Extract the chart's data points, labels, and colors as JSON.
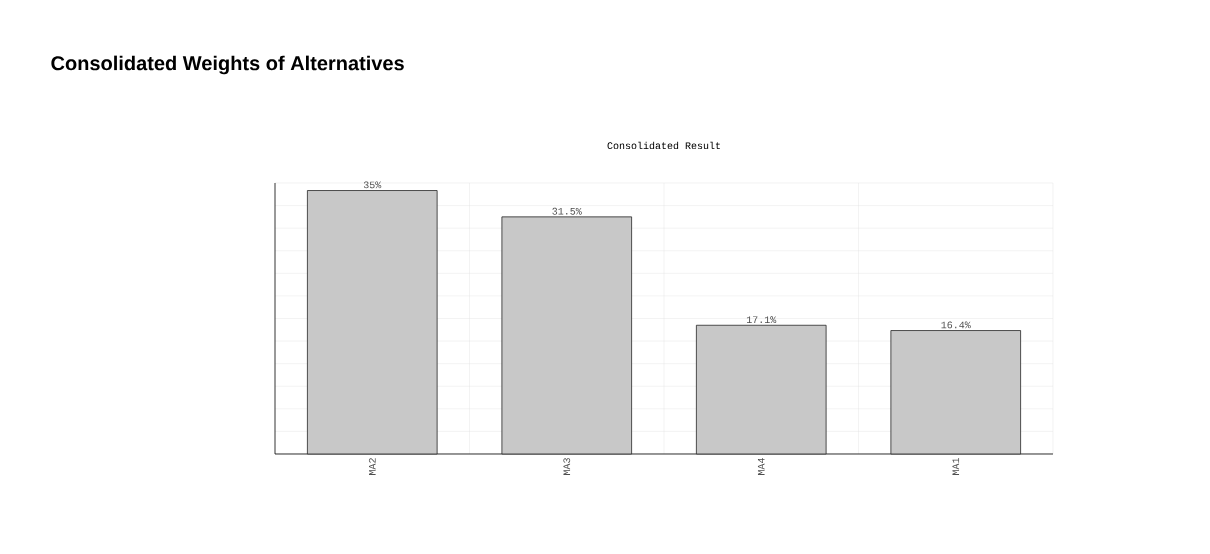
{
  "chart_data": {
    "type": "bar",
    "title": "Consolidated Weights of Alternatives",
    "subtitle": "Consolidated Result",
    "categories": [
      "MA2",
      "MA3",
      "MA4",
      "MA1"
    ],
    "values": [
      35,
      31.5,
      17.1,
      16.4
    ],
    "value_labels": [
      "35%",
      "31.5%",
      "17.1%",
      "16.4%"
    ],
    "color": "#c8c8c8",
    "ylim": [
      0,
      36
    ],
    "yticks": [
      {
        "value": 0,
        "label": null
      },
      {
        "value": 3,
        "label": null
      },
      {
        "value": 6,
        "label": null
      },
      {
        "value": 9,
        "label": null
      },
      {
        "value": 12,
        "label": null
      },
      {
        "value": 15,
        "label": null
      },
      {
        "value": 18,
        "label": null
      },
      {
        "value": 21,
        "label": null
      },
      {
        "value": 24,
        "label": null
      },
      {
        "value": 27,
        "label": null
      },
      {
        "value": 30,
        "label": null
      },
      {
        "value": 33,
        "label": null
      },
      {
        "value": 36,
        "label": null
      }
    ],
    "tick_labels": "x",
    "grid": true
  }
}
